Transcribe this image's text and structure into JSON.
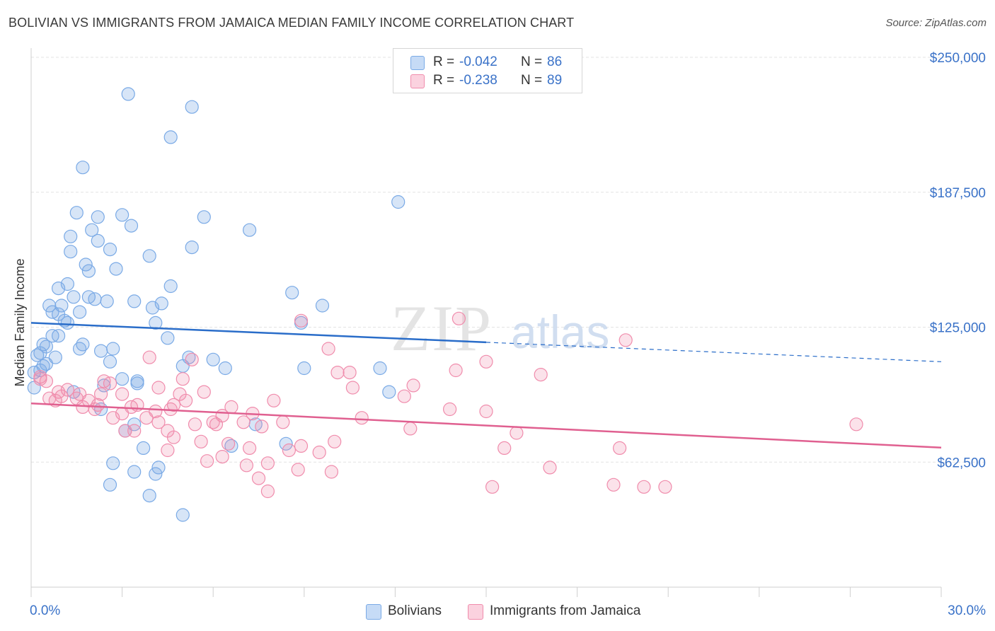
{
  "title": "BOLIVIAN VS IMMIGRANTS FROM JAMAICA MEDIAN FAMILY INCOME CORRELATION CHART",
  "source": "Source: ZipAtlas.com",
  "watermark": {
    "zip": "ZIP",
    "atlas": "atlas"
  },
  "legend": {
    "r_label": "R =",
    "n_label": "N =",
    "rows": [
      {
        "r": "-0.042",
        "n": "86",
        "color": "#7aaae6"
      },
      {
        "r": "-0.238",
        "n": "89",
        "color": "#f08cac"
      }
    ]
  },
  "bottom_legend": [
    "Bolivians",
    "Immigrants from Jamaica"
  ],
  "chart_data": {
    "type": "scatter",
    "title": "BOLIVIAN VS IMMIGRANTS FROM JAMAICA MEDIAN FAMILY INCOME CORRELATION CHART",
    "xlabel": "",
    "ylabel": "Median Family Income",
    "xlim": [
      0,
      30
    ],
    "ylim": [
      20000,
      270000
    ],
    "x_tick_labels": [
      "0.0%",
      "30.0%"
    ],
    "y_ticks": [
      62500,
      125000,
      187500,
      250000
    ],
    "y_tick_labels": [
      "$62,500",
      "$125,000",
      "$187,500",
      "$250,000"
    ],
    "grid": true,
    "legend_position": "top-center",
    "series": [
      {
        "name": "Bolivians",
        "color": "#7aaae6",
        "line_color": "#2a6dc9",
        "trend": {
          "x0": 0,
          "y0": 127000,
          "x1": 15,
          "y1": 118000,
          "x_end": 30,
          "y_end": 109000
        },
        "points": [
          [
            3.2,
            233000
          ],
          [
            5.3,
            227000
          ],
          [
            4.6,
            213000
          ],
          [
            1.7,
            199000
          ],
          [
            12.1,
            183000
          ],
          [
            1.5,
            178000
          ],
          [
            3.0,
            177000
          ],
          [
            2.2,
            176000
          ],
          [
            5.7,
            176000
          ],
          [
            3.3,
            172000
          ],
          [
            2.0,
            170000
          ],
          [
            7.2,
            170000
          ],
          [
            1.3,
            167000
          ],
          [
            2.2,
            165000
          ],
          [
            2.6,
            161000
          ],
          [
            5.3,
            162000
          ],
          [
            1.3,
            160000
          ],
          [
            3.9,
            158000
          ],
          [
            1.8,
            154000
          ],
          [
            1.9,
            151000
          ],
          [
            2.8,
            152000
          ],
          [
            1.2,
            145000
          ],
          [
            4.6,
            144000
          ],
          [
            0.9,
            143000
          ],
          [
            8.6,
            141000
          ],
          [
            1.4,
            139000
          ],
          [
            1.9,
            139000
          ],
          [
            2.1,
            138000
          ],
          [
            2.5,
            137000
          ],
          [
            3.4,
            137000
          ],
          [
            4.3,
            136000
          ],
          [
            0.6,
            135000
          ],
          [
            1.0,
            135000
          ],
          [
            9.6,
            135000
          ],
          [
            4.0,
            134000
          ],
          [
            0.7,
            132000
          ],
          [
            1.6,
            132000
          ],
          [
            0.9,
            131000
          ],
          [
            1.1,
            128000
          ],
          [
            1.2,
            127000
          ],
          [
            4.1,
            127000
          ],
          [
            8.9,
            127000
          ],
          [
            0.7,
            121000
          ],
          [
            0.9,
            121000
          ],
          [
            4.5,
            120000
          ],
          [
            0.4,
            117000
          ],
          [
            1.7,
            117000
          ],
          [
            0.5,
            116000
          ],
          [
            1.6,
            115000
          ],
          [
            2.3,
            114000
          ],
          [
            2.7,
            115000
          ],
          [
            0.3,
            113000
          ],
          [
            0.2,
            112000
          ],
          [
            0.8,
            111000
          ],
          [
            5.2,
            111000
          ],
          [
            6.0,
            110000
          ],
          [
            2.6,
            109000
          ],
          [
            0.5,
            108000
          ],
          [
            0.4,
            107000
          ],
          [
            5.0,
            107000
          ],
          [
            6.4,
            106000
          ],
          [
            9.0,
            106000
          ],
          [
            11.5,
            106000
          ],
          [
            0.3,
            105000
          ],
          [
            0.1,
            104000
          ],
          [
            3.0,
            101000
          ],
          [
            3.5,
            100000
          ],
          [
            2.4,
            98000
          ],
          [
            3.5,
            99000
          ],
          [
            11.8,
            95000
          ],
          [
            1.4,
            95000
          ],
          [
            2.3,
            87000
          ],
          [
            3.4,
            80000
          ],
          [
            7.4,
            80000
          ],
          [
            3.1,
            77000
          ],
          [
            8.4,
            71000
          ],
          [
            6.6,
            70000
          ],
          [
            3.7,
            69000
          ],
          [
            2.7,
            62000
          ],
          [
            4.2,
            60000
          ],
          [
            3.4,
            58000
          ],
          [
            4.1,
            57000
          ],
          [
            2.6,
            52000
          ],
          [
            3.9,
            47000
          ],
          [
            5.0,
            38000
          ],
          [
            0.1,
            97000
          ]
        ]
      },
      {
        "name": "Immigrants from Jamaica",
        "color": "#f08cac",
        "line_color": "#e06090",
        "trend": {
          "x0": 0,
          "y0": 89700,
          "x1": 30,
          "y1": 69200
        },
        "points": [
          [
            14.1,
            129000
          ],
          [
            8.9,
            128000
          ],
          [
            19.6,
            119000
          ],
          [
            9.8,
            115000
          ],
          [
            3.9,
            111000
          ],
          [
            5.3,
            110000
          ],
          [
            15.0,
            109000
          ],
          [
            14.0,
            105000
          ],
          [
            10.1,
            104000
          ],
          [
            10.5,
            104000
          ],
          [
            16.8,
            103000
          ],
          [
            0.3,
            102000
          ],
          [
            0.3,
            101000
          ],
          [
            5.0,
            101000
          ],
          [
            0.5,
            100000
          ],
          [
            2.4,
            100000
          ],
          [
            2.6,
            99000
          ],
          [
            12.6,
            98000
          ],
          [
            4.2,
            97000
          ],
          [
            10.6,
            97000
          ],
          [
            1.2,
            96000
          ],
          [
            5.7,
            95000
          ],
          [
            0.9,
            95000
          ],
          [
            2.3,
            94000
          ],
          [
            3.0,
            94000
          ],
          [
            1.6,
            94000
          ],
          [
            4.9,
            94000
          ],
          [
            1.0,
            93000
          ],
          [
            12.3,
            93000
          ],
          [
            0.6,
            92000
          ],
          [
            1.5,
            92000
          ],
          [
            0.8,
            91000
          ],
          [
            5.1,
            91000
          ],
          [
            1.9,
            91000
          ],
          [
            8.0,
            91000
          ],
          [
            4.7,
            89000
          ],
          [
            2.2,
            89000
          ],
          [
            3.5,
            89000
          ],
          [
            6.6,
            88000
          ],
          [
            1.7,
            88000
          ],
          [
            3.3,
            88000
          ],
          [
            4.6,
            87000
          ],
          [
            2.1,
            87000
          ],
          [
            13.8,
            87000
          ],
          [
            4.1,
            86000
          ],
          [
            15.0,
            86000
          ],
          [
            7.3,
            85000
          ],
          [
            3.0,
            85000
          ],
          [
            6.3,
            84000
          ],
          [
            3.8,
            83000
          ],
          [
            2.7,
            83000
          ],
          [
            10.9,
            83000
          ],
          [
            6.0,
            81000
          ],
          [
            8.3,
            81000
          ],
          [
            4.2,
            81000
          ],
          [
            7.0,
            81000
          ],
          [
            6.1,
            80000
          ],
          [
            5.4,
            80000
          ],
          [
            27.2,
            80000
          ],
          [
            7.6,
            79000
          ],
          [
            12.5,
            78000
          ],
          [
            3.1,
            77000
          ],
          [
            4.5,
            77000
          ],
          [
            16.0,
            76000
          ],
          [
            4.7,
            74000
          ],
          [
            10.0,
            72000
          ],
          [
            3.4,
            77000
          ],
          [
            5.6,
            72000
          ],
          [
            6.5,
            71000
          ],
          [
            8.9,
            70000
          ],
          [
            7.2,
            69000
          ],
          [
            8.5,
            68000
          ],
          [
            15.6,
            69000
          ],
          [
            19.4,
            69000
          ],
          [
            4.5,
            68000
          ],
          [
            9.5,
            67000
          ],
          [
            6.3,
            65000
          ],
          [
            5.8,
            63000
          ],
          [
            7.8,
            62000
          ],
          [
            7.1,
            61000
          ],
          [
            17.1,
            60000
          ],
          [
            8.8,
            59000
          ],
          [
            9.9,
            58000
          ],
          [
            7.5,
            55000
          ],
          [
            19.2,
            52000
          ],
          [
            20.2,
            51000
          ],
          [
            20.9,
            51000
          ],
          [
            15.2,
            51000
          ],
          [
            7.8,
            49000
          ]
        ]
      }
    ]
  }
}
